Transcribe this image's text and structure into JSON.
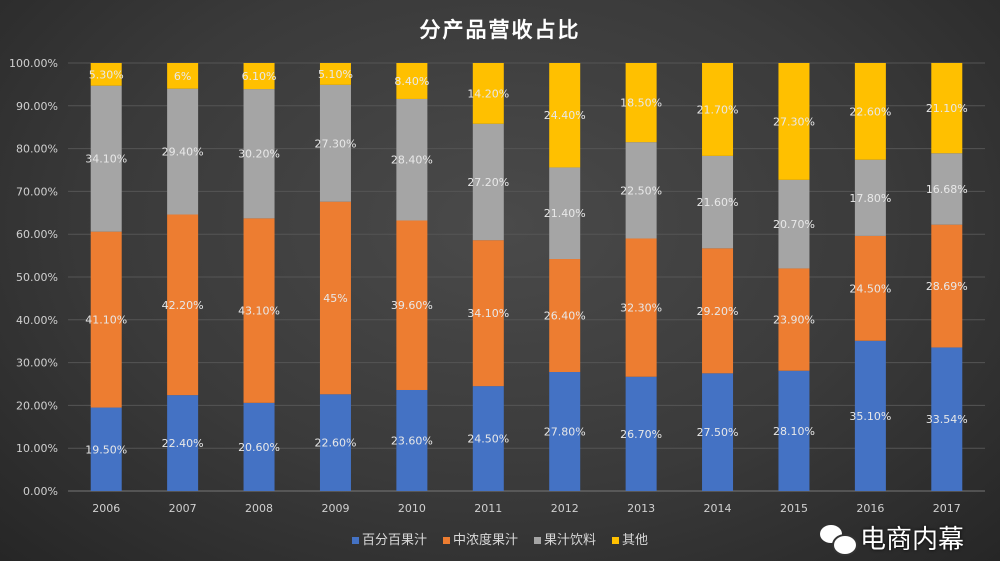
{
  "chart_data": {
    "type": "bar",
    "stacked": true,
    "title": "分产品营收占比",
    "categories": [
      "2006",
      "2007",
      "2008",
      "2009",
      "2010",
      "2011",
      "2012",
      "2013",
      "2014",
      "2015",
      "2016",
      "2017"
    ],
    "series": [
      {
        "name": "百分百果汁",
        "color": "#4472c4",
        "values": [
          19.5,
          22.4,
          20.6,
          22.6,
          23.6,
          24.5,
          27.8,
          26.7,
          27.5,
          28.1,
          35.1,
          33.54
        ],
        "labels": [
          "19.50%",
          "22.40%",
          "20.60%",
          "22.60%",
          "23.60%",
          "24.50%",
          "27.80%",
          "26.70%",
          "27.50%",
          "28.10%",
          "35.10%",
          "33.54%"
        ]
      },
      {
        "name": "中浓度果汁",
        "color": "#ed7d31",
        "values": [
          41.1,
          42.2,
          43.1,
          45,
          39.6,
          34.1,
          26.4,
          32.3,
          29.2,
          23.9,
          24.5,
          28.69
        ],
        "labels": [
          "41.10%",
          "42.20%",
          "43.10%",
          "45%",
          "39.60%",
          "34.10%",
          "26.40%",
          "32.30%",
          "29.20%",
          "23.90%",
          "24.50%",
          "28.69%"
        ]
      },
      {
        "name": "果汁饮料",
        "color": "#a5a5a5",
        "values": [
          34.1,
          29.4,
          30.2,
          27.3,
          28.4,
          27.2,
          21.4,
          22.5,
          21.6,
          20.7,
          17.8,
          16.68
        ],
        "labels": [
          "34.10%",
          "29.40%",
          "30.20%",
          "27.30%",
          "28.40%",
          "27.20%",
          "21.40%",
          "22.50%",
          "21.60%",
          "20.70%",
          "17.80%",
          "16.68%"
        ]
      },
      {
        "name": "其他",
        "color": "#ffc000",
        "values": [
          5.3,
          6,
          6.1,
          5.1,
          8.4,
          14.2,
          24.4,
          18.5,
          21.7,
          27.3,
          22.6,
          21.1
        ],
        "labels": [
          "5.30%",
          "6%",
          "6.10%",
          "5.10%",
          "8.40%",
          "14.20%",
          "24.40%",
          "18.50%",
          "21.70%",
          "27.30%",
          "22.60%",
          "21.10%"
        ]
      }
    ],
    "yticks": [
      "0.00%",
      "10.00%",
      "20.00%",
      "30.00%",
      "40.00%",
      "50.00%",
      "60.00%",
      "70.00%",
      "80.00%",
      "90.00%",
      "100.00%"
    ],
    "ylim": [
      0,
      100
    ],
    "grid": true,
    "legend": "bottom"
  },
  "watermark": "电商内幕"
}
